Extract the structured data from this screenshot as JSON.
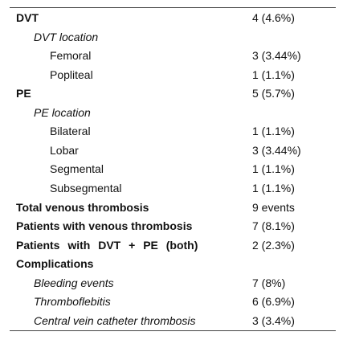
{
  "table": {
    "rows": [
      {
        "label": "DVT",
        "value": "4 (4.6%)"
      },
      {
        "label": "DVT location"
      },
      {
        "label": "Femoral",
        "value": "3 (3.44%)"
      },
      {
        "label": "Popliteal",
        "value": "1 (1.1%)"
      },
      {
        "label": "PE",
        "value": "5 (5.7%)"
      },
      {
        "label": "PE location"
      },
      {
        "label": "Bilateral",
        "value": "1 (1.1%)"
      },
      {
        "label": "Lobar",
        "value": "3 (3.44%)"
      },
      {
        "label": "Segmental",
        "value": "1 (1.1%)"
      },
      {
        "label": "Subsegmental",
        "value": "1 (1.1%)"
      },
      {
        "label": "Total venous thrombosis",
        "value": "9 events"
      },
      {
        "label": "Patients with venous thrombosis",
        "value": "7 (8.1%)"
      },
      {
        "label": "Patients with DVT + PE (both)",
        "value": "2 (2.3%)"
      },
      {
        "label": "Complications"
      },
      {
        "label": "Bleeding events",
        "value": "7 (8%)"
      },
      {
        "label": "Thromboflebitis",
        "value": "6 (6.9%)"
      },
      {
        "label": "Central vein catheter thrombosis",
        "value": "3 (3.4%)"
      }
    ]
  }
}
